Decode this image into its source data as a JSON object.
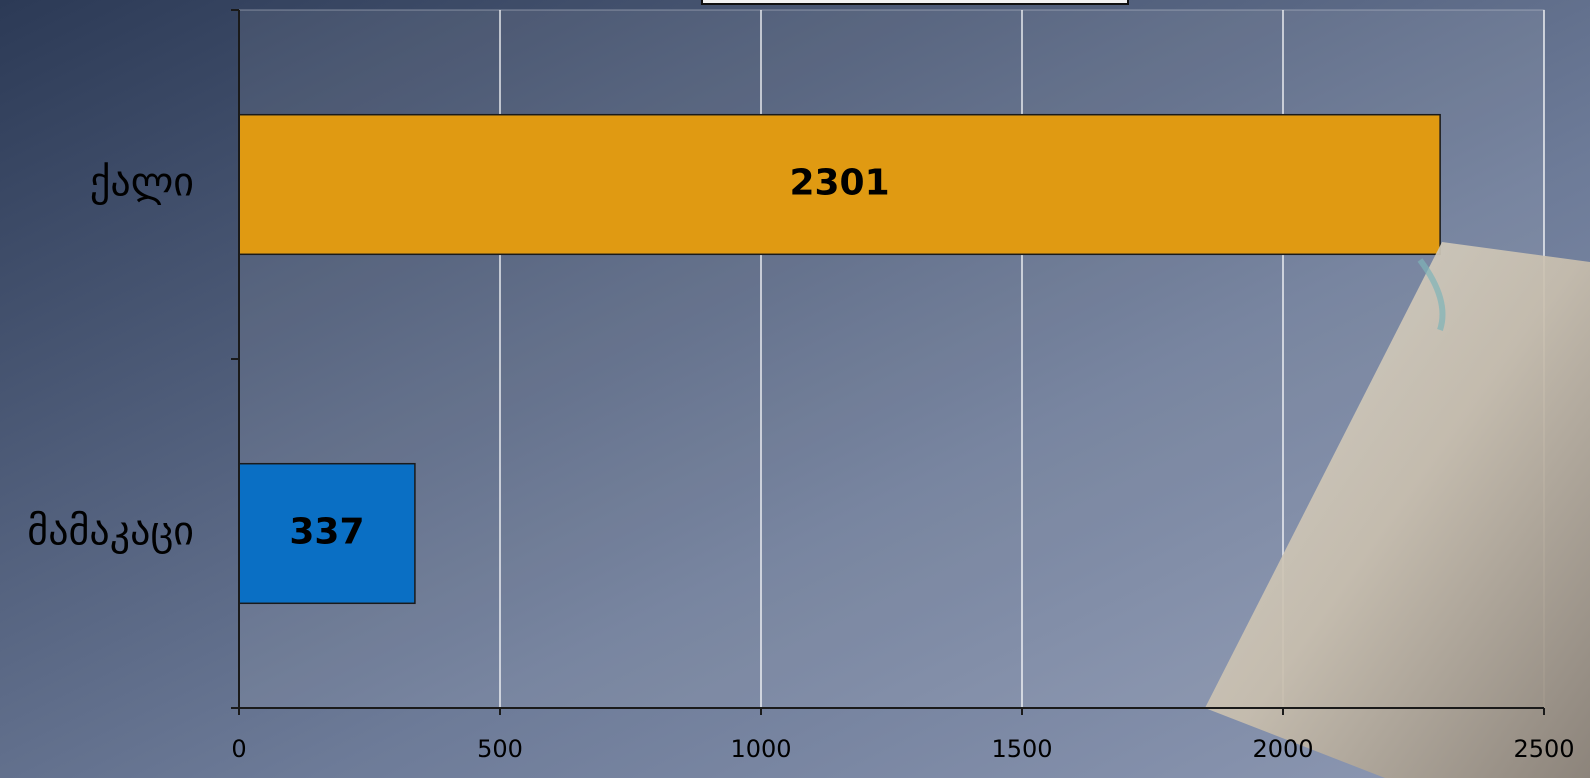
{
  "chart_data": {
    "type": "bar",
    "orientation": "horizontal",
    "categories": [
      "მამაკაცი",
      "ქალი"
    ],
    "values": [
      337,
      2301
    ],
    "colors": [
      "#0a6fc4",
      "#e09a12"
    ],
    "xlim": [
      0,
      2500
    ],
    "xticks": [
      0,
      500,
      1000,
      1500,
      2000,
      2500
    ],
    "grid": true
  }
}
